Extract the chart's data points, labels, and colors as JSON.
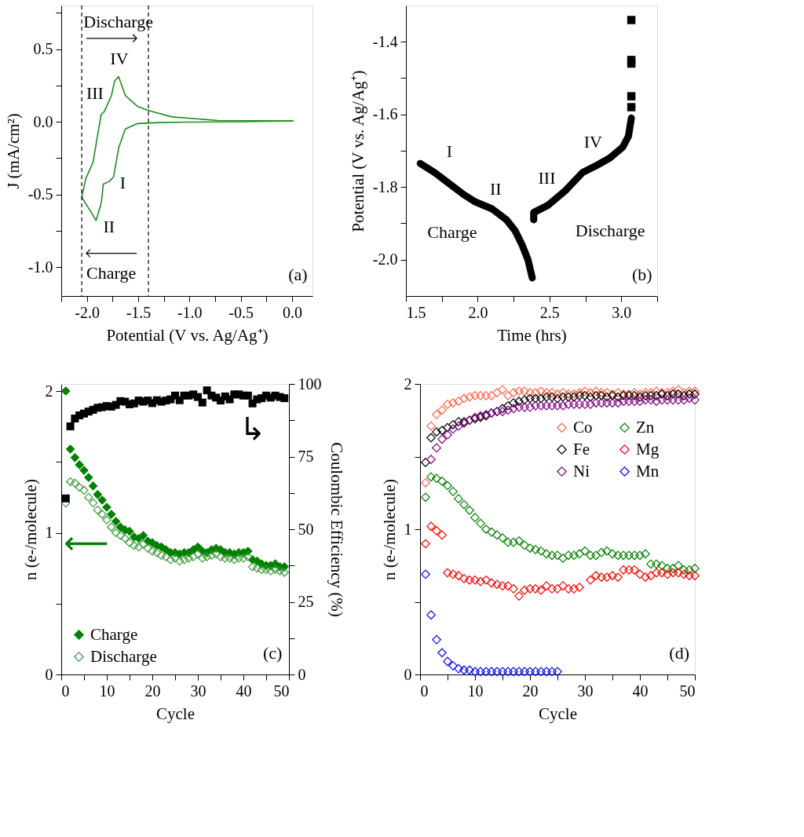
{
  "chart_data": [
    {
      "type": "line",
      "xlabel": "Potential (V vs. Ag/Ag⁺)",
      "ylabel": "J (mA/cm²)",
      "annotations": [
        "Discharge",
        "Charge",
        "IV",
        "III",
        "I",
        "II",
        "(a)"
      ],
      "xlim": [
        -2.25,
        0.2
      ],
      "ylim": [
        -1.2,
        0.8
      ],
      "xticks": [
        {
          "value": -2.25,
          "label": null
        },
        {
          "value": -2,
          "label": "-2.0"
        },
        {
          "value": -1.75,
          "label": null
        },
        {
          "value": -1.5,
          "label": "-1.5"
        },
        {
          "value": -1.25,
          "label": null
        },
        {
          "value": -1,
          "label": "-1.0"
        },
        {
          "value": -0.75,
          "label": null
        },
        {
          "value": -0.5,
          "label": "-0.5"
        },
        {
          "value": -0.25,
          "label": null
        },
        {
          "value": 0,
          "label": "0.0"
        }
      ],
      "yticks": [
        {
          "value": 0.75,
          "label": null
        },
        {
          "value": 0.5,
          "label": "0.5"
        },
        {
          "value": 0.25,
          "label": null
        },
        {
          "value": 0,
          "label": "0.0"
        },
        {
          "value": -0.25,
          "label": null
        },
        {
          "value": -0.5,
          "label": "-0.5"
        },
        {
          "value": -0.75,
          "label": null
        },
        {
          "value": -1,
          "label": "-1.0"
        }
      ],
      "ref_lines": [
        {
          "axis": "x",
          "value": -2.05,
          "line_style": "dashed",
          "color": "#000000"
        },
        {
          "axis": "x",
          "value": -1.4,
          "line_style": "dashed",
          "color": "#000000"
        }
      ],
      "series": [
        {
          "color": "#1e8c1e",
          "x": [
            0.01,
            -0.5,
            -1.0,
            -1.3,
            -1.51,
            -1.625,
            -1.69,
            -1.74,
            -1.78,
            -1.84,
            -1.86,
            -1.91,
            -1.97,
            -2.05
          ],
          "values": [
            0.005,
            0.0,
            -0.003,
            -0.006,
            -0.013,
            -0.05,
            -0.18,
            -0.38,
            -0.41,
            -0.43,
            -0.56,
            -0.68,
            -0.61,
            -0.52
          ]
        },
        {
          "color": "#1e8c1e",
          "x": [
            -2.05,
            -2.01,
            -1.94,
            -1.89,
            -1.86,
            -1.83,
            -1.76,
            -1.73,
            -1.69,
            -1.625,
            -1.51,
            -1.4,
            -1.17,
            -0.72,
            0.01
          ],
          "values": [
            -0.52,
            -0.39,
            -0.28,
            -0.07,
            0.05,
            0.07,
            0.18,
            0.28,
            0.31,
            0.18,
            0.107,
            0.077,
            0.033,
            0.008,
            0.005
          ]
        }
      ]
    },
    {
      "type": "line",
      "xlabel": "Time (hrs)",
      "ylabel": "Potential (V vs. Ag/Ag⁺)",
      "annotations": [
        "I",
        "II",
        "III",
        "IV",
        "Charge",
        "Discharge",
        "(b)"
      ],
      "xlim": [
        1.5,
        3.25
      ],
      "ylim": [
        -2.1,
        -1.3
      ],
      "xticks": [
        1.5,
        {
          "value": 1.75,
          "label": null
        },
        {
          "value": 2,
          "label": "2.0"
        },
        {
          "value": 2.25,
          "label": null
        },
        2.5,
        {
          "value": 2.75,
          "label": null
        },
        {
          "value": 3,
          "label": "3.0"
        },
        {
          "value": 3.25,
          "label": null
        }
      ],
      "yticks": [
        -1.4,
        {
          "value": -1.5,
          "label": null
        },
        -1.6,
        {
          "value": -1.7,
          "label": null
        },
        -1.8,
        {
          "value": -1.9,
          "label": null
        },
        {
          "value": -2,
          "label": "-2.0"
        }
      ],
      "series": [
        {
          "color": "#000000",
          "x": [
            1.6,
            1.7,
            1.8,
            1.9,
            1.98,
            2.1,
            2.2,
            2.26,
            2.31,
            2.35,
            2.38
          ],
          "values": [
            -1.735,
            -1.76,
            -1.79,
            -1.82,
            -1.84,
            -1.86,
            -1.89,
            -1.92,
            -1.96,
            -2.0,
            -2.05
          ]
        },
        {
          "color": "#000000",
          "x": [
            2.39,
            2.39,
            2.49,
            2.61,
            2.73,
            2.83,
            2.92,
            3.01,
            3.05,
            3.07
          ],
          "values": [
            -1.89,
            -1.87,
            -1.85,
            -1.81,
            -1.76,
            -1.74,
            -1.72,
            -1.69,
            -1.66,
            -1.61
          ]
        },
        {
          "type": "scatter",
          "marker": "square",
          "color": "#000000",
          "x": [
            3.07,
            3.07,
            3.07,
            3.07,
            3.07
          ],
          "values": [
            -1.58,
            -1.55,
            -1.46,
            -1.45,
            -1.34
          ]
        }
      ]
    },
    {
      "type": "scatter",
      "xlabel": "Cycle",
      "ylabel": "n (e-/molecule)",
      "y2label": "Coulombic Efficiency (%)",
      "legend": "bottom left",
      "annotations": [
        "⟵",
        "↳",
        "(c)"
      ],
      "xlim": [
        0,
        50
      ],
      "ylim": [
        0,
        2.05
      ],
      "y2lim": [
        0,
        100
      ],
      "xticks": [
        0,
        {
          "value": 5,
          "label": null
        },
        10,
        {
          "value": 15,
          "label": null
        },
        20,
        {
          "value": 25,
          "label": null
        },
        30,
        {
          "value": 35,
          "label": null
        },
        40,
        {
          "value": 45,
          "label": null
        },
        50
      ],
      "yticks": [
        0,
        {
          "value": 0.5,
          "label": null
        },
        1,
        {
          "value": 1.5,
          "label": null
        },
        2
      ],
      "y2ticks": [
        0,
        {
          "value": 12.5,
          "label": null
        },
        25,
        {
          "value": 37.5,
          "label": null
        },
        50,
        {
          "value": 62.5,
          "label": null
        },
        75,
        {
          "value": 87.5,
          "label": null
        },
        100
      ],
      "x": [
        1,
        2,
        3,
        4,
        5,
        6,
        7,
        8,
        9,
        10,
        11,
        12,
        13,
        14,
        15,
        16,
        17,
        18,
        19,
        20,
        21,
        22,
        23,
        24,
        25,
        26,
        27,
        28,
        29,
        30,
        31,
        32,
        33,
        34,
        35,
        36,
        37,
        38,
        39,
        40,
        41,
        42,
        43,
        44,
        45,
        46,
        47,
        48,
        49
      ],
      "series": [
        {
          "name": "Charge",
          "marker": "diamond",
          "color": "#008000",
          "values": [
            2.0,
            1.59,
            1.53,
            1.48,
            1.44,
            1.39,
            1.33,
            1.27,
            1.23,
            1.18,
            1.13,
            1.08,
            1.04,
            1.02,
            1.01,
            0.97,
            0.96,
            0.98,
            0.94,
            0.93,
            0.91,
            0.9,
            0.88,
            0.86,
            0.86,
            0.85,
            0.86,
            0.86,
            0.88,
            0.9,
            0.87,
            0.86,
            0.88,
            0.89,
            0.88,
            0.86,
            0.86,
            0.85,
            0.86,
            0.86,
            0.87,
            0.81,
            0.8,
            0.78,
            0.77,
            0.77,
            0.78,
            0.76,
            0.76
          ]
        },
        {
          "name": "Discharge",
          "marker": "diamond",
          "color": "#3a9a3a",
          "values": [
            1.21,
            1.36,
            1.35,
            1.32,
            1.3,
            1.25,
            1.21,
            1.16,
            1.13,
            1.09,
            1.04,
            1.0,
            0.98,
            0.96,
            0.93,
            0.91,
            0.9,
            0.92,
            0.89,
            0.87,
            0.86,
            0.84,
            0.83,
            0.81,
            0.82,
            0.8,
            0.81,
            0.82,
            0.83,
            0.85,
            0.82,
            0.83,
            0.84,
            0.85,
            0.83,
            0.82,
            0.82,
            0.81,
            0.82,
            0.82,
            0.83,
            0.76,
            0.75,
            0.74,
            0.74,
            0.73,
            0.74,
            0.73,
            0.72
          ]
        },
        {
          "axis": "y2",
          "marker": "square",
          "color": "#000000",
          "values": [
            60.6,
            85.4,
            88.1,
            89.2,
            89.8,
            90.5,
            91.1,
            91.8,
            92.0,
            92.4,
            92.2,
            92.8,
            94.1,
            93.9,
            93.0,
            93.3,
            94.3,
            93.9,
            94.3,
            93.4,
            94.4,
            93.9,
            94.3,
            94.7,
            96.0,
            94.4,
            96.0,
            96.0,
            96.4,
            95.5,
            93.6,
            97.8,
            96.0,
            95.3,
            94.3,
            95.7,
            94.7,
            96.4,
            96.4,
            96.0,
            96.0,
            93.3,
            94.7,
            95.1,
            96.0,
            95.3,
            96.0,
            95.5,
            95.1
          ]
        }
      ]
    },
    {
      "type": "scatter",
      "xlabel": "Cycle",
      "ylabel": "n (e-/molecule)",
      "legend": "top right",
      "marker": "diamond",
      "annotations": [
        "(d)"
      ],
      "xlim": [
        0,
        50
      ],
      "ylim": [
        0,
        2
      ],
      "xticks": [
        0,
        {
          "value": 5,
          "label": null
        },
        10,
        {
          "value": 15,
          "label": null
        },
        20,
        {
          "value": 25,
          "label": null
        },
        30,
        {
          "value": 35,
          "label": null
        },
        40,
        {
          "value": 45,
          "label": null
        },
        50
      ],
      "yticks": [
        0,
        {
          "value": 0.5,
          "label": null
        },
        1,
        {
          "value": 1.5,
          "label": null
        },
        2
      ],
      "x": [
        1,
        2,
        3,
        4,
        5,
        6,
        7,
        8,
        9,
        10,
        11,
        12,
        13,
        14,
        15,
        16,
        17,
        18,
        19,
        20,
        21,
        22,
        23,
        24,
        25,
        26,
        27,
        28,
        29,
        30,
        31,
        32,
        33,
        34,
        35,
        36,
        37,
        38,
        39,
        40,
        41,
        42,
        43,
        44,
        45,
        46,
        47,
        48,
        49,
        50
      ],
      "series": [
        {
          "name": "Co",
          "color": "#ff6347",
          "values": [
            1.32,
            1.71,
            1.79,
            1.82,
            1.86,
            1.87,
            1.88,
            1.9,
            1.91,
            1.92,
            1.92,
            1.92,
            1.92,
            1.94,
            1.96,
            1.92,
            1.94,
            1.95,
            1.95,
            1.94,
            1.94,
            1.95,
            1.94,
            1.94,
            1.93,
            1.94,
            1.93,
            1.93,
            1.94,
            1.95,
            1.94,
            1.95,
            1.94,
            1.94,
            1.93,
            1.94,
            1.93,
            1.93,
            1.94,
            1.93,
            1.94,
            1.94,
            1.95,
            1.94,
            1.94,
            1.95,
            1.96,
            1.94,
            1.95,
            1.95
          ]
        },
        {
          "name": "Fe",
          "color": "#000000",
          "values": [
            1.46,
            1.63,
            1.67,
            1.68,
            1.7,
            1.72,
            1.74,
            1.74,
            1.75,
            1.76,
            1.77,
            1.78,
            1.8,
            1.81,
            1.83,
            1.85,
            1.87,
            1.88,
            1.89,
            1.9,
            1.9,
            1.9,
            1.91,
            1.91,
            1.9,
            1.91,
            1.91,
            1.91,
            1.92,
            1.92,
            1.91,
            1.92,
            1.92,
            1.91,
            1.92,
            1.91,
            1.92,
            1.92,
            1.92,
            1.91,
            1.92,
            1.92,
            1.92,
            1.93,
            1.92,
            1.93,
            1.93,
            1.92,
            1.93,
            1.93
          ]
        },
        {
          "name": "Ni",
          "color": "#800080",
          "values": [
            null,
            1.48,
            1.56,
            1.62,
            1.65,
            1.69,
            1.71,
            1.73,
            1.75,
            1.77,
            1.78,
            1.79,
            1.8,
            1.81,
            1.81,
            1.82,
            1.83,
            1.84,
            1.84,
            1.84,
            1.85,
            1.85,
            1.85,
            1.85,
            1.85,
            1.85,
            1.86,
            1.86,
            1.86,
            1.86,
            1.86,
            1.87,
            1.87,
            1.87,
            1.87,
            1.87,
            1.88,
            1.88,
            1.88,
            1.88,
            1.89,
            1.89,
            1.88,
            1.89,
            1.89,
            1.89,
            1.89,
            1.89,
            1.9,
            1.89
          ]
        },
        {
          "name": "Zn",
          "color": "#008000",
          "values": [
            1.22,
            1.36,
            1.35,
            1.33,
            1.3,
            1.26,
            1.21,
            1.17,
            1.13,
            1.08,
            1.04,
            1.0,
            0.98,
            0.96,
            0.94,
            0.91,
            0.91,
            0.92,
            0.89,
            0.87,
            0.86,
            0.85,
            0.83,
            0.82,
            0.82,
            0.8,
            0.82,
            0.82,
            0.83,
            0.85,
            0.82,
            0.82,
            0.84,
            0.85,
            0.83,
            0.82,
            0.82,
            0.82,
            0.82,
            0.82,
            0.83,
            0.76,
            0.76,
            0.75,
            0.73,
            0.73,
            0.75,
            0.72,
            0.72,
            0.73
          ]
        },
        {
          "name": "Mg",
          "color": "#ff0000",
          "values": [
            0.9,
            1.02,
            0.99,
            0.96,
            0.7,
            0.69,
            0.68,
            0.66,
            0.65,
            0.65,
            0.64,
            0.65,
            0.63,
            0.62,
            0.61,
            0.61,
            0.59,
            0.54,
            0.58,
            0.59,
            0.59,
            0.58,
            0.61,
            0.59,
            0.59,
            0.61,
            0.59,
            0.59,
            0.6,
            null,
            0.65,
            0.68,
            0.67,
            0.67,
            0.68,
            0.67,
            0.72,
            0.72,
            0.72,
            0.69,
            0.67,
            0.68,
            0.7,
            0.7,
            0.69,
            0.7,
            0.7,
            0.69,
            0.68,
            0.68
          ]
        },
        {
          "name": "Mn",
          "color": "#0000ff",
          "values": [
            0.69,
            0.41,
            0.24,
            0.15,
            0.09,
            0.06,
            0.04,
            0.03,
            0.03,
            0.02,
            0.02,
            0.02,
            0.02,
            0.02,
            0.02,
            0.02,
            0.02,
            0.02,
            0.02,
            0.02,
            0.02,
            0.02,
            0.02,
            0.02,
            0.02,
            null,
            null,
            null,
            null,
            null,
            null,
            null,
            null,
            null,
            null,
            null,
            null,
            null,
            null,
            null,
            null,
            null,
            null,
            null,
            null,
            null,
            null,
            null,
            null,
            null
          ]
        }
      ]
    }
  ]
}
